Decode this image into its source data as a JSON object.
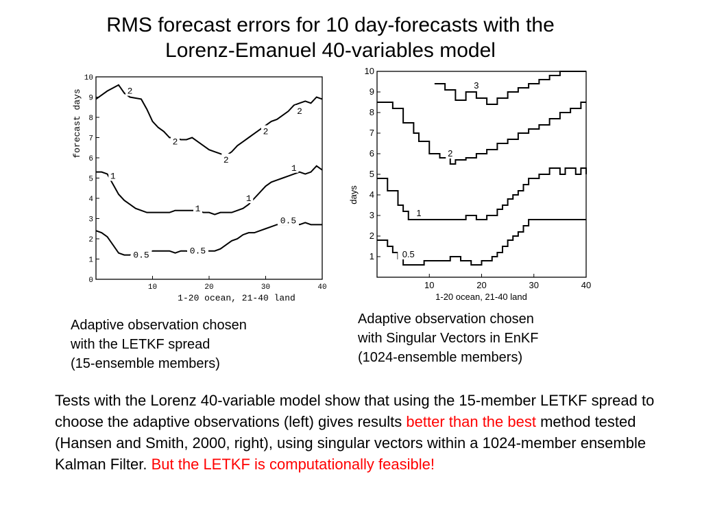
{
  "title": {
    "line1": "RMS forecast errors for 10 day-forecasts with the",
    "line2": "Lorenz-Emanuel 40-variables model"
  },
  "chart_data": [
    {
      "type": "line",
      "ylabel": "forecast days",
      "xlabel": "1-20 ocean, 21-40 land",
      "xlim": [
        0,
        40
      ],
      "ylim": [
        0,
        10
      ],
      "xticks": [
        10,
        20,
        30,
        40
      ],
      "yticks": [
        0,
        1,
        2,
        3,
        4,
        5,
        6,
        7,
        8,
        9,
        10
      ],
      "series": [
        {
          "name": "2",
          "x": [
            0,
            2,
            4,
            5,
            6,
            8,
            9,
            10,
            11,
            12,
            13,
            14,
            15,
            16,
            17,
            18,
            19,
            20,
            21,
            22,
            23,
            24,
            25,
            26,
            27,
            28,
            29,
            30,
            31,
            32,
            33,
            34,
            35,
            36,
            37,
            38,
            39,
            40
          ],
          "y": [
            8.9,
            9.3,
            9.6,
            9.2,
            9.0,
            8.9,
            8.4,
            7.8,
            7.5,
            7.3,
            7.0,
            7.0,
            6.9,
            6.9,
            7.0,
            6.8,
            6.6,
            6.4,
            6.3,
            6.2,
            6.1,
            6.3,
            6.6,
            6.8,
            7.0,
            7.2,
            7.4,
            7.6,
            7.8,
            7.9,
            8.1,
            8.3,
            8.6,
            8.7,
            8.8,
            8.7,
            9.0,
            8.9
          ],
          "labels": [
            {
              "x": 6,
              "y": 9.3
            },
            {
              "x": 14,
              "y": 6.8
            },
            {
              "x": 23,
              "y": 5.9
            },
            {
              "x": 30,
              "y": 7.3
            },
            {
              "x": 36,
              "y": 8.3
            }
          ]
        },
        {
          "name": "1",
          "x": [
            0,
            1,
            2,
            3,
            4,
            5,
            6,
            7,
            8,
            9,
            10,
            11,
            12,
            13,
            14,
            15,
            16,
            17,
            18,
            19,
            20,
            21,
            22,
            23,
            24,
            25,
            26,
            27,
            28,
            29,
            30,
            31,
            32,
            33,
            34,
            35,
            36,
            37,
            38,
            39,
            40
          ],
          "y": [
            5.3,
            5.3,
            5.2,
            4.7,
            4.2,
            3.9,
            3.7,
            3.5,
            3.4,
            3.3,
            3.3,
            3.3,
            3.3,
            3.3,
            3.4,
            3.4,
            3.4,
            3.4,
            3.4,
            3.3,
            3.3,
            3.2,
            3.3,
            3.3,
            3.3,
            3.4,
            3.5,
            3.7,
            4.0,
            4.3,
            4.6,
            4.8,
            4.9,
            5.0,
            5.1,
            5.2,
            5.3,
            5.2,
            5.3,
            5.6,
            5.4
          ],
          "labels": [
            {
              "x": 3,
              "y": 5.1
            },
            {
              "x": 18,
              "y": 3.5
            },
            {
              "x": 27,
              "y": 4.0
            },
            {
              "x": 35,
              "y": 5.5
            }
          ]
        },
        {
          "name": "0.5",
          "x": [
            0,
            1,
            2,
            3,
            4,
            5,
            6,
            7,
            8,
            9,
            10,
            11,
            12,
            13,
            14,
            15,
            16,
            17,
            18,
            19,
            20,
            21,
            22,
            23,
            24,
            25,
            26,
            27,
            28,
            29,
            30,
            31,
            32,
            33,
            34,
            35,
            36,
            37,
            38,
            39,
            40
          ],
          "y": [
            2.4,
            2.3,
            2.1,
            1.7,
            1.3,
            1.2,
            1.2,
            1.3,
            1.2,
            1.3,
            1.4,
            1.4,
            1.4,
            1.4,
            1.3,
            1.4,
            1.4,
            1.3,
            1.4,
            1.4,
            1.4,
            1.4,
            1.5,
            1.7,
            1.9,
            2.0,
            2.2,
            2.3,
            2.3,
            2.4,
            2.5,
            2.6,
            2.7,
            2.7,
            2.7,
            2.8,
            2.7,
            2.8,
            2.7,
            2.7,
            2.7
          ],
          "labels": [
            {
              "x": 8,
              "y": 1.2
            },
            {
              "x": 18,
              "y": 1.4
            },
            {
              "x": 34,
              "y": 2.9
            }
          ]
        }
      ]
    },
    {
      "type": "line",
      "ylabel": "days",
      "xlabel": "1-20 ocean, 21-40 land",
      "xlim": [
        0,
        40
      ],
      "ylim": [
        0,
        10
      ],
      "xticks": [
        10,
        20,
        30,
        40
      ],
      "yticks": [
        1,
        2,
        3,
        4,
        5,
        6,
        7,
        8,
        9,
        10
      ],
      "series": [
        {
          "name": "3",
          "x": [
            11,
            12,
            13,
            14,
            15,
            16,
            17,
            18,
            19,
            20,
            21,
            22,
            23,
            24,
            25,
            26,
            27,
            28,
            29,
            30,
            31,
            32,
            33,
            34,
            35,
            36,
            37,
            38,
            39,
            40
          ],
          "y": [
            9.4,
            9.4,
            9.1,
            9.1,
            8.6,
            8.6,
            9.0,
            9.0,
            8.7,
            8.7,
            8.4,
            8.4,
            8.7,
            8.7,
            9.0,
            9.0,
            9.2,
            9.2,
            9.4,
            9.4,
            9.6,
            9.6,
            9.8,
            9.8,
            10.0,
            10.0,
            10.0,
            10.0,
            10.0,
            10.0
          ],
          "labels": [
            {
              "x": 19,
              "y": 9.3
            }
          ]
        },
        {
          "name": "2",
          "x": [
            0,
            1,
            2,
            3,
            4,
            5,
            6,
            7,
            8,
            9,
            10,
            11,
            12,
            13,
            14,
            15,
            16,
            17,
            18,
            19,
            20,
            21,
            22,
            23,
            24,
            25,
            26,
            27,
            28,
            29,
            30,
            31,
            32,
            33,
            34,
            35,
            36,
            37,
            38,
            39,
            40
          ],
          "y": [
            8.5,
            8.5,
            8.5,
            8.2,
            8.2,
            7.5,
            7.5,
            7.0,
            6.6,
            6.6,
            6.0,
            6.0,
            5.8,
            5.8,
            5.5,
            5.7,
            5.7,
            5.8,
            5.8,
            6.0,
            6.0,
            6.2,
            6.2,
            6.5,
            6.5,
            6.7,
            6.7,
            7.0,
            7.0,
            7.2,
            7.2,
            7.4,
            7.4,
            7.7,
            7.7,
            8.0,
            8.0,
            8.2,
            8.2,
            8.5,
            8.5
          ],
          "labels": [
            {
              "x": 14,
              "y": 6.0
            }
          ]
        },
        {
          "name": "1",
          "x": [
            0,
            1,
            2,
            3,
            4,
            5,
            6,
            7,
            8,
            9,
            10,
            11,
            12,
            13,
            14,
            15,
            16,
            17,
            18,
            19,
            20,
            21,
            22,
            23,
            24,
            25,
            26,
            27,
            28,
            29,
            30,
            31,
            32,
            33,
            34,
            35,
            36,
            37,
            38,
            39,
            40
          ],
          "y": [
            4.8,
            4.8,
            4.2,
            4.2,
            3.5,
            3.2,
            2.8,
            2.8,
            2.8,
            2.8,
            2.8,
            2.8,
            2.8,
            2.8,
            2.8,
            2.8,
            2.8,
            3.0,
            3.0,
            2.8,
            2.8,
            3.0,
            3.0,
            3.3,
            3.5,
            3.8,
            4.0,
            4.2,
            4.5,
            4.8,
            4.8,
            5.0,
            5.0,
            5.3,
            5.3,
            5.0,
            5.3,
            5.3,
            5.0,
            5.3,
            5.0
          ],
          "labels": [
            {
              "x": 8,
              "y": 3.1
            }
          ]
        },
        {
          "name": "0.5",
          "x": [
            0,
            1,
            2,
            3,
            4,
            5,
            6,
            7,
            8,
            9,
            10,
            11,
            12,
            13,
            14,
            15,
            16,
            17,
            18,
            19,
            20,
            21,
            22,
            23,
            24,
            25,
            26,
            27,
            28,
            29,
            30,
            31,
            32,
            33,
            34,
            35,
            36,
            37,
            38,
            39,
            40
          ],
          "y": [
            1.8,
            1.8,
            1.5,
            1.2,
            0.9,
            0.6,
            0.6,
            0.6,
            0.6,
            0.8,
            0.8,
            0.8,
            0.8,
            0.8,
            1.0,
            1.0,
            0.8,
            0.8,
            0.6,
            0.6,
            0.8,
            0.8,
            1.0,
            1.2,
            1.5,
            1.8,
            2.0,
            2.2,
            2.5,
            2.8,
            2.8,
            2.8,
            2.8,
            2.8,
            2.8,
            2.8,
            2.8,
            2.8,
            2.8,
            2.8,
            2.8
          ],
          "labels": [
            {
              "x": 6,
              "y": 1.1
            }
          ]
        }
      ]
    }
  ],
  "captions": {
    "left": {
      "line1": "Adaptive observation chosen",
      "line2": "with the LETKF spread",
      "line3": "(15-ensemble members)"
    },
    "right": {
      "line1": "Adaptive observation chosen",
      "line2": "with Singular Vectors in EnKF",
      "line3": "(1024-ensemble members)"
    }
  },
  "summary": {
    "part1": "Tests with the Lorenz 40-variable model show that using the 15-member LETKF spread to choose the adaptive observations (left) gives results ",
    "highlight1": "better than the best",
    "part2": " method tested (Hansen and Smith, 2000, right), using singular vectors within a 1024-member ensemble Kalman Filter. ",
    "highlight2": "But the LETKF is computationally feasible!"
  },
  "colors": {
    "highlight": "#ff0000",
    "line": "#000000"
  }
}
